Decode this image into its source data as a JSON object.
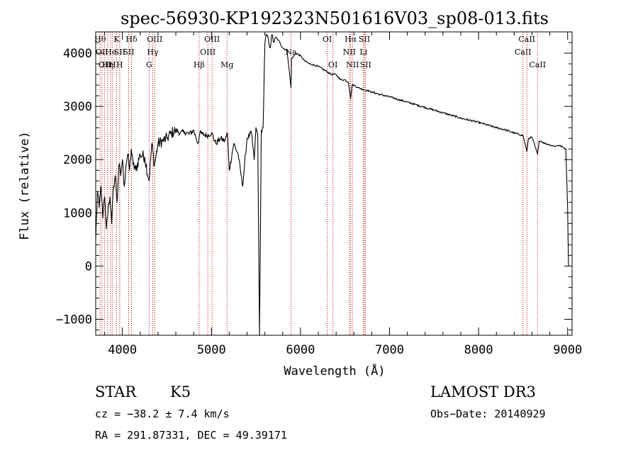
{
  "chart_data": {
    "type": "line",
    "title": "spec-56930-KP192323N501616V03_sp08-013.fits",
    "xlabel": "Wavelength (Å)",
    "ylabel": "Flux (relative)",
    "xlim": [
      3700,
      9050
    ],
    "ylim": [
      -1300,
      4400
    ],
    "x_ticks": [
      4000,
      5000,
      6000,
      7000,
      8000,
      9000
    ],
    "y_ticks": [
      -1000,
      0,
      1000,
      2000,
      3000,
      4000
    ],
    "x_tick_labels": [
      "4000",
      "5000",
      "6000",
      "7000",
      "8000",
      "9000"
    ],
    "y_tick_labels": [
      "−1000",
      "0",
      "1000",
      "2000",
      "3000",
      "4000"
    ],
    "series": [
      {
        "name": "flux",
        "x": [
          3700,
          3720,
          3740,
          3760,
          3780,
          3800,
          3820,
          3840,
          3860,
          3880,
          3900,
          3920,
          3940,
          3960,
          3980,
          4000,
          4020,
          4040,
          4060,
          4080,
          4100,
          4120,
          4150,
          4200,
          4250,
          4300,
          4330,
          4360,
          4400,
          4450,
          4500,
          4550,
          4600,
          4650,
          4700,
          4750,
          4800,
          4850,
          4870,
          4900,
          4950,
          5000,
          5050,
          5100,
          5150,
          5180,
          5200,
          5250,
          5300,
          5350,
          5400,
          5450,
          5480,
          5500,
          5520,
          5540,
          5560,
          5580,
          5600,
          5620,
          5640,
          5660,
          5680,
          5700,
          5720,
          5750,
          5800,
          5850,
          5893,
          5900,
          5950,
          6000,
          6050,
          6100,
          6150,
          6200,
          6250,
          6300,
          6350,
          6400,
          6450,
          6500,
          6540,
          6563,
          6580,
          6600,
          6650,
          6700,
          6750,
          6800,
          6900,
          7000,
          7100,
          7200,
          7300,
          7400,
          7500,
          7600,
          7700,
          7800,
          7900,
          8000,
          8100,
          8200,
          8300,
          8400,
          8500,
          8542,
          8560,
          8600,
          8662,
          8680,
          8700,
          8750,
          8800,
          8850,
          8900,
          8950,
          8980,
          9000,
          9010
        ],
        "y": [
          500,
          1400,
          1100,
          1500,
          900,
          1300,
          700,
          1100,
          1300,
          800,
          1500,
          1700,
          1200,
          1900,
          1700,
          2000,
          1500,
          1900,
          2100,
          1800,
          2200,
          1900,
          1800,
          2100,
          2050,
          1600,
          2300,
          1900,
          2300,
          2350,
          2400,
          2500,
          2550,
          2500,
          2520,
          2480,
          2550,
          2300,
          2500,
          2480,
          2450,
          2500,
          2300,
          2400,
          2350,
          2500,
          1800,
          2300,
          2100,
          1500,
          2400,
          2500,
          2000,
          2600,
          2450,
          -1300,
          2550,
          2600,
          4200,
          4350,
          4250,
          4100,
          4350,
          4200,
          4300,
          4250,
          4100,
          4050,
          3350,
          3900,
          4000,
          3950,
          3850,
          3800,
          3780,
          3750,
          3700,
          3650,
          3600,
          3600,
          3500,
          3500,
          3450,
          3150,
          3400,
          3400,
          3350,
          3320,
          3300,
          3270,
          3220,
          3180,
          3130,
          3080,
          3030,
          2980,
          2930,
          2880,
          2830,
          2780,
          2740,
          2700,
          2650,
          2600,
          2560,
          2500,
          2450,
          2150,
          2400,
          2420,
          2100,
          2350,
          2350,
          2300,
          2280,
          2250,
          2270,
          2230,
          2200,
          1100,
          0
        ]
      }
    ],
    "line_annotations": [
      {
        "wavelength": 3750,
        "label": "Hθ",
        "row": 0
      },
      {
        "wavelength": 3770,
        "label": "OII",
        "row": 1
      },
      {
        "wavelength": 3800,
        "label": "OII",
        "row": 2
      },
      {
        "wavelength": 3835,
        "label": "Hη",
        "row": 2
      },
      {
        "wavelength": 3869,
        "label": "He",
        "row": 1
      },
      {
        "wavelength": 3889,
        "label": "H",
        "row": 2
      },
      {
        "wavelength": 3934,
        "label": "K",
        "row": 0
      },
      {
        "wavelength": 3969,
        "label": "H",
        "row": 2
      },
      {
        "wavelength": 3970,
        "label": "SII",
        "row": 1
      },
      {
        "wavelength": 4102,
        "label": "Hδ",
        "row": 0
      },
      {
        "wavelength": 4070,
        "label": "SII",
        "row": 1
      },
      {
        "wavelength": 4300,
        "label": "G",
        "row": 2
      },
      {
        "wavelength": 4341,
        "label": "Hγ",
        "row": 1
      },
      {
        "wavelength": 4363,
        "label": "OIII",
        "row": 0
      },
      {
        "wavelength": 4861,
        "label": "Hβ",
        "row": 2
      },
      {
        "wavelength": 4959,
        "label": "OIII",
        "row": 1
      },
      {
        "wavelength": 5007,
        "label": "OIII",
        "row": 0
      },
      {
        "wavelength": 5175,
        "label": "Mg",
        "row": 2
      },
      {
        "wavelength": 5893,
        "label": "Na",
        "row": 1
      },
      {
        "wavelength": 6300,
        "label": "OI",
        "row": 0
      },
      {
        "wavelength": 6364,
        "label": "OI",
        "row": 2
      },
      {
        "wavelength": 6548,
        "label": "NII",
        "row": 1
      },
      {
        "wavelength": 6563,
        "label": "Hα",
        "row": 0
      },
      {
        "wavelength": 6584,
        "label": "NII",
        "row": 2
      },
      {
        "wavelength": 6708,
        "label": "Li",
        "row": 1
      },
      {
        "wavelength": 6717,
        "label": "SII",
        "row": 0
      },
      {
        "wavelength": 6731,
        "label": "SII",
        "row": 2
      },
      {
        "wavelength": 8498,
        "label": "CaII",
        "row": 1
      },
      {
        "wavelength": 8542,
        "label": "CaII",
        "row": 0
      },
      {
        "wavelength": 8662,
        "label": "CaII",
        "row": 2
      }
    ],
    "annotation_color": "#c00000",
    "line_color": "#000000"
  },
  "info": {
    "object_class": "STAR",
    "subclass": "K5",
    "survey": "LAMOST DR3",
    "cz": "cz = −38.2 ± 7.4 km/s",
    "obs_date": "Obs−Date: 20140929",
    "coords": "RA = 291.87331, DEC =  49.39171"
  }
}
